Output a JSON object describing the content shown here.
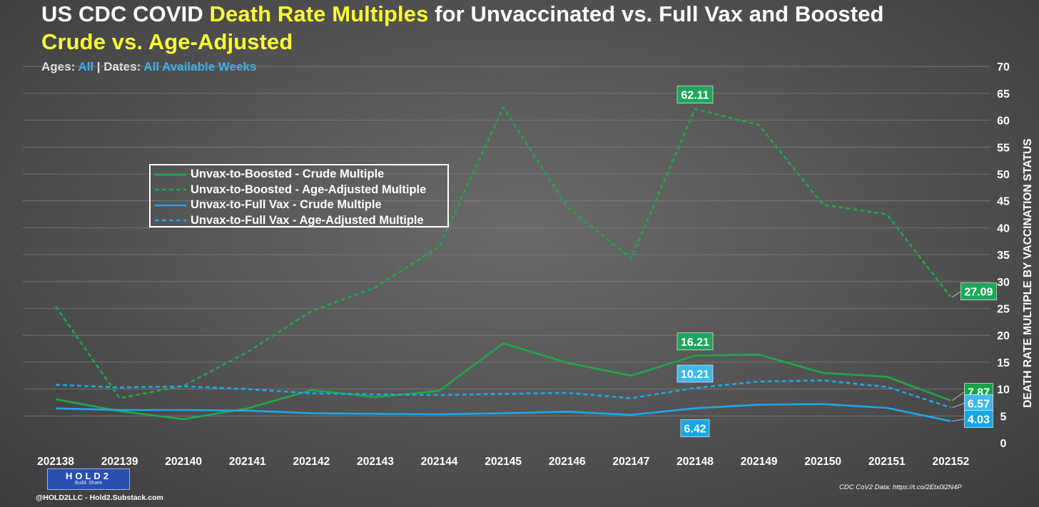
{
  "title": {
    "line1": [
      {
        "text": "US CDC COVID ",
        "color": "#ffffff"
      },
      {
        "text": "Death Rate Multiples",
        "color": "#ffff33"
      },
      {
        "text": " for Unvaccinated vs. Full Vax and Boosted",
        "color": "#ffffff"
      }
    ],
    "line2": [
      {
        "text": "Crude vs. Age-Adjusted",
        "color": "#ffff33"
      }
    ]
  },
  "subtitle": {
    "ages_label": "Ages: ",
    "ages_value": "All",
    "separator": " | ",
    "dates_label": "Dates: ",
    "dates_value": "All Available Weeks"
  },
  "footer": {
    "logo_word": "HOLD2",
    "logo_tagline": "Build. Share",
    "credit": "@HOLD2LLC - Hold2.Substack.com",
    "source": "CDC CoV2 Data: https://t.co/2Etx0i2N4P"
  },
  "chart_data": {
    "type": "line",
    "title": "US CDC COVID Death Rate Multiples for Unvaccinated vs. Full Vax and Boosted",
    "subtitle": "Crude vs. Age-Adjusted",
    "xlabel": "",
    "ylabel": "DEATH RATE MULTIPLE BY VACCINATION STATUS",
    "y_axis_side": "right",
    "ylim": [
      0,
      70
    ],
    "yticks": [
      0,
      5,
      10,
      15,
      20,
      25,
      30,
      35,
      40,
      45,
      50,
      55,
      60,
      65,
      70
    ],
    "grid": true,
    "legend_position": "upper-left",
    "categories": [
      "202138",
      "202139",
      "202140",
      "202141",
      "202142",
      "202143",
      "202144",
      "202145",
      "202146",
      "202147",
      "202148",
      "202149",
      "202150",
      "202151",
      "202152"
    ],
    "series": [
      {
        "name": "Unvax-to-Boosted - Crude Multiple",
        "color": "#1fa84a",
        "dashed": false,
        "values": [
          8.1,
          5.9,
          4.4,
          6.4,
          9.8,
          8.5,
          9.7,
          18.5,
          14.9,
          12.5,
          16.21,
          16.4,
          13.0,
          12.3,
          7.87
        ]
      },
      {
        "name": "Unvax-to-Boosted - Age-Adjusted Multiple",
        "color": "#1fa84a",
        "dashed": true,
        "values": [
          25.4,
          8.3,
          10.6,
          16.9,
          24.5,
          28.9,
          36.5,
          62.4,
          43.9,
          34.3,
          62.11,
          59.1,
          44.3,
          42.5,
          27.09
        ]
      },
      {
        "name": "Unvax-to-Full Vax - Crude Multiple",
        "color": "#1ea7e8",
        "dashed": false,
        "values": [
          6.4,
          6.1,
          6.1,
          6.0,
          5.5,
          5.4,
          5.3,
          5.5,
          5.8,
          5.2,
          6.42,
          7.1,
          7.2,
          6.5,
          4.03
        ]
      },
      {
        "name": "Unvax-to-Full Vax - Age-Adjusted Multiple",
        "color": "#1ea7e8",
        "dashed": true,
        "values": [
          10.8,
          10.3,
          10.5,
          10.0,
          9.2,
          9.0,
          8.9,
          9.1,
          9.3,
          8.3,
          10.21,
          11.4,
          11.6,
          10.4,
          6.57
        ]
      }
    ],
    "annotations": [
      {
        "series": 1,
        "index": 10,
        "label": "62.11",
        "fill": "#1ea65a"
      },
      {
        "series": 0,
        "index": 10,
        "label": "16.21",
        "fill": "#1ea65a"
      },
      {
        "series": 3,
        "index": 10,
        "label": "10.21",
        "fill": "#3fb8ec"
      },
      {
        "series": 2,
        "index": 10,
        "label": "6.42",
        "fill": "#14a6e6"
      },
      {
        "series": 1,
        "index": 14,
        "label": "27.09",
        "fill": "#1ea65a"
      },
      {
        "series": 0,
        "index": 14,
        "label": "7.87",
        "fill": "#14a34a"
      },
      {
        "series": 3,
        "index": 14,
        "label": "6.57",
        "fill": "#3fb8ec"
      },
      {
        "series": 2,
        "index": 14,
        "label": "4.03",
        "fill": "#14a6e6"
      }
    ]
  }
}
